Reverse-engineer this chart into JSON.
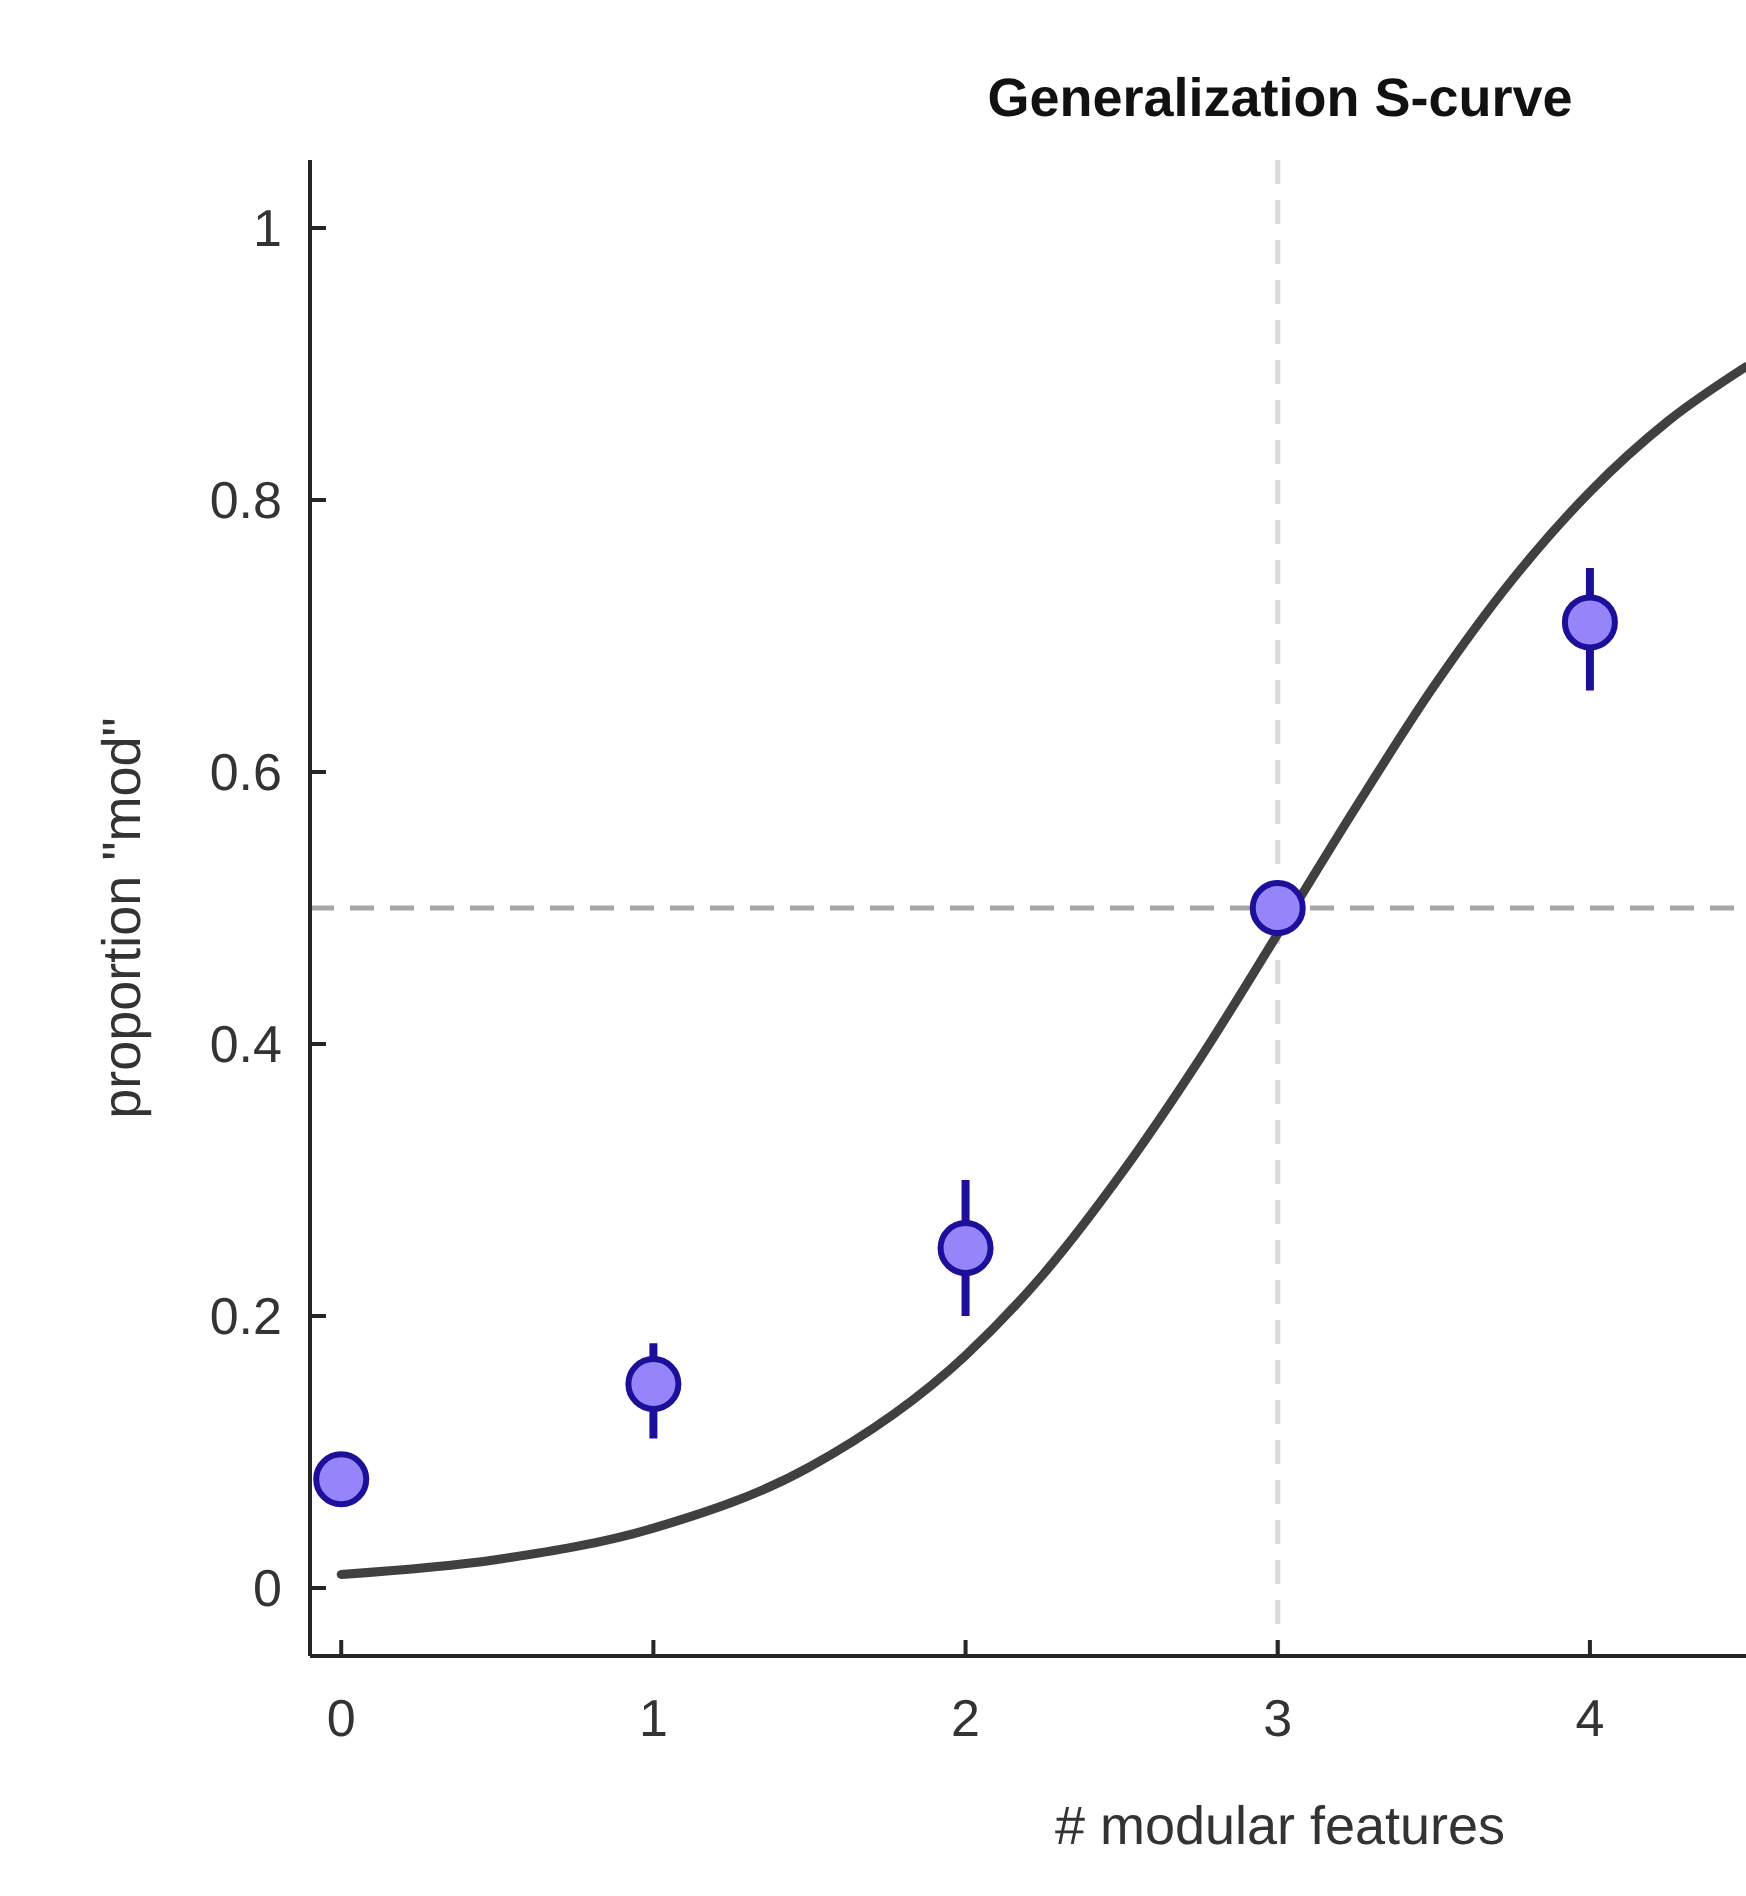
{
  "chart_data": {
    "type": "scatter",
    "title": "Generalization S-curve",
    "xlabel": "# modular features",
    "ylabel": "proportion \"mod\"",
    "xlim": [
      -0.1,
      4.5
    ],
    "ylim": [
      -0.05,
      1.05
    ],
    "xticks": [
      0,
      1,
      2,
      3,
      4
    ],
    "yticks": [
      0,
      0.2,
      0.4,
      0.6,
      0.8,
      1
    ],
    "grid": false,
    "marker": "circle",
    "series": [
      {
        "color": "#9584fa",
        "x": [
          0,
          1,
          2,
          3,
          4
        ],
        "values": [
          0.08,
          0.15,
          0.25,
          0.5,
          0.71
        ],
        "errors": [
          null,
          [
            0.11,
            0.18
          ],
          [
            0.2,
            0.3
          ],
          null,
          [
            0.66,
            0.75
          ]
        ]
      },
      {
        "type": "line",
        "color": "#404040",
        "line_style": "solid",
        "marker": "none",
        "x": [
          0,
          0.5,
          1,
          1.5,
          2,
          2.25,
          2.5,
          2.75,
          3,
          3.25,
          3.5,
          3.75,
          4,
          4.25,
          4.5
        ],
        "values": [
          0.01,
          0.021,
          0.044,
          0.089,
          0.171,
          0.231,
          0.305,
          0.389,
          0.481,
          0.574,
          0.663,
          0.741,
          0.806,
          0.858,
          0.898
        ]
      }
    ],
    "ref_lines": [
      {
        "axis": "x",
        "value": 3,
        "color": "#d9d9d9",
        "line_style": "dashed"
      },
      {
        "axis": "y",
        "value": 0.5,
        "color": "#a6a6a6",
        "line_style": "dashed"
      }
    ]
  }
}
